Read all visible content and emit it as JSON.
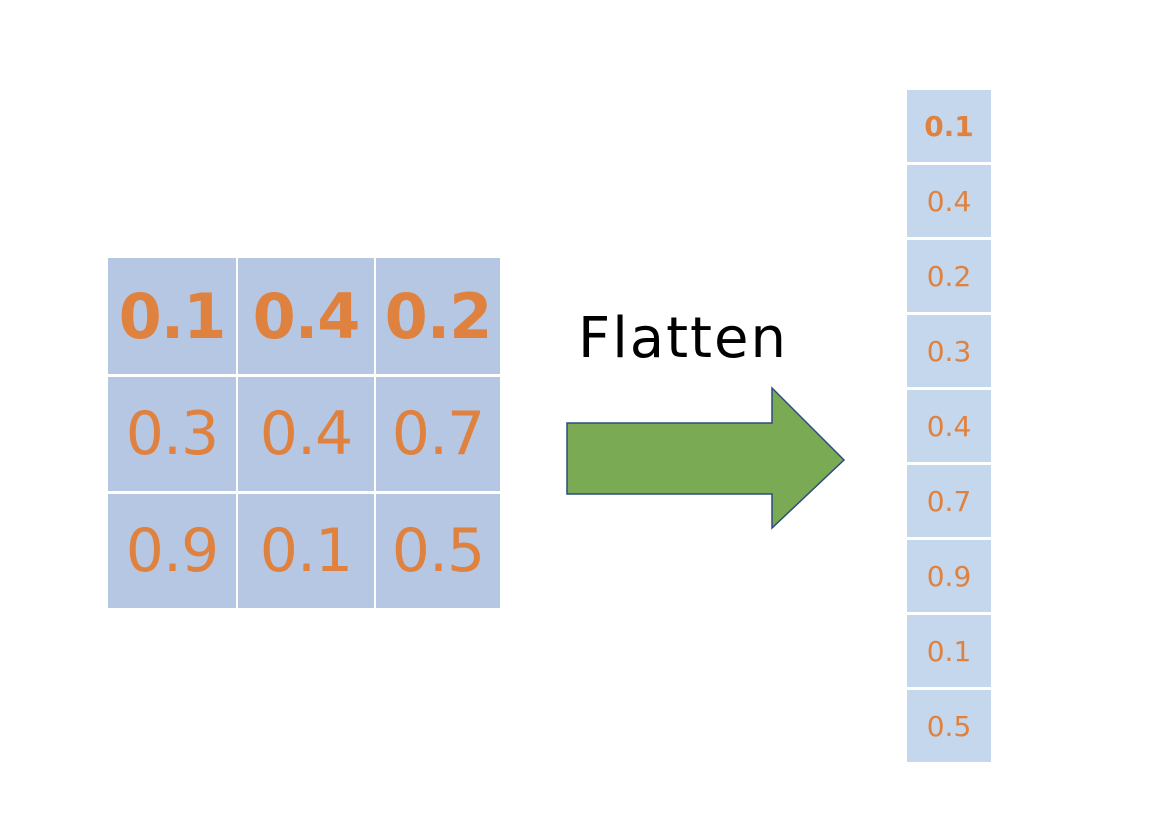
{
  "matrix": {
    "rows": [
      [
        "0.1",
        "0.4",
        "0.2"
      ],
      [
        "0.3",
        "0.4",
        "0.7"
      ],
      [
        "0.9",
        "0.1",
        "0.5"
      ]
    ],
    "highlighted_row": 0
  },
  "operation_label": "Flatten",
  "vector": {
    "values": [
      "0.1",
      "0.4",
      "0.2",
      "0.3",
      "0.4",
      "0.7",
      "0.9",
      "0.1",
      "0.5"
    ],
    "highlighted_index": 0
  },
  "colors": {
    "cell_fill_matrix": "#b6c7e3",
    "cell_fill_vector": "#c5d7ec",
    "value_text": "#e0823f",
    "arrow_fill": "#7aab54",
    "arrow_stroke": "#2f4b7c"
  }
}
